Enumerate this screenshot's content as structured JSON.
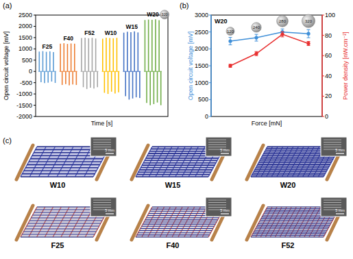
{
  "panel_labels": [
    "(a)",
    "(b)",
    "(c)"
  ],
  "chart_data": [
    {
      "type": "stem",
      "ylabel": "Open circuit voltage [mV]",
      "xlabel": "Time [s]",
      "ylim": [
        -2000,
        2500
      ],
      "yticks": [
        -2000,
        -1500,
        -1000,
        -500,
        0,
        500,
        1000,
        1500,
        2000,
        2500
      ],
      "tick_labels": "y",
      "annotations": [
        "320"
      ],
      "series": [
        {
          "name": "F25",
          "color": "#5b9bd5",
          "values": [
            880,
            -480,
            900,
            -520,
            870,
            -500,
            890,
            -450,
            860,
            -510
          ]
        },
        {
          "name": "F40",
          "color": "#ed7d31",
          "values": [
            1230,
            -600,
            1250,
            -560,
            1220,
            -620,
            1240,
            -580,
            1230,
            -600
          ]
        },
        {
          "name": "F52",
          "color": "#a5a5a5",
          "values": [
            1480,
            -700,
            1500,
            -780,
            1470,
            -720,
            1490,
            -760,
            1460,
            -700
          ]
        },
        {
          "name": "W10",
          "color": "#ffc000",
          "values": [
            1450,
            -950,
            1500,
            -1000,
            1480,
            -900,
            1470,
            -980,
            1490,
            -930
          ]
        },
        {
          "name": "W15",
          "color": "#4472c4",
          "values": [
            1720,
            -1100,
            1760,
            -1250,
            1740,
            -1200,
            1780,
            -1150,
            1730,
            -1180
          ]
        },
        {
          "name": "W20",
          "color": "#70ad47",
          "values": [
            2280,
            -1400,
            2300,
            -1500,
            2290,
            -1450,
            2310,
            -1380,
            2270,
            -1500
          ]
        }
      ]
    },
    {
      "type": "line",
      "title": "W20",
      "xlabel": "Force [mN]",
      "categories": [
        "120",
        "240",
        "280",
        "320"
      ],
      "ylabel": "Open circuit voltage [mV]",
      "y2label": "Power density [nW.cm⁻²]",
      "ylim": [
        0,
        3000
      ],
      "yticks": [
        0,
        500,
        1000,
        1500,
        2000,
        2500,
        3000
      ],
      "y2lim": [
        0,
        100
      ],
      "y2ticks": [
        0,
        20,
        40,
        60,
        80,
        100
      ],
      "series": [
        {
          "color": "#3f8fd8",
          "marker": "circle",
          "values": [
            2230,
            2330,
            2500,
            2450
          ],
          "errors": [
            110,
            100,
            90,
            120
          ]
        },
        {
          "color": "#e83030",
          "marker": "circle",
          "axis": "y2",
          "values": [
            50,
            62,
            81,
            72
          ],
          "errors": [
            1.5,
            2,
            2.5,
            2
          ]
        }
      ]
    }
  ],
  "illustrations": {
    "panels": [
      {
        "label": "W10",
        "scale_bar": "5 mm"
      },
      {
        "label": "W15",
        "scale_bar": "5 mm"
      },
      {
        "label": "W20",
        "scale_bar": "5 mm"
      },
      {
        "label": "F25",
        "scale_bar": "5 mm"
      },
      {
        "label": "F40",
        "scale_bar": "5 mm"
      },
      {
        "label": "F52",
        "scale_bar": "5 mm"
      }
    ]
  }
}
